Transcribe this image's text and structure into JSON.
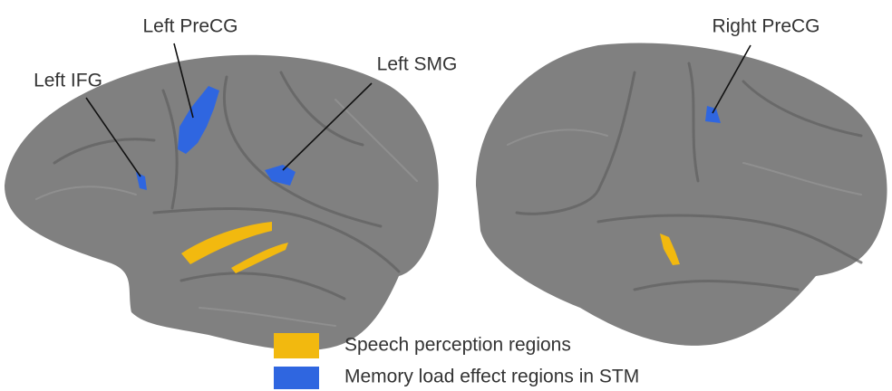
{
  "labels": {
    "left_precg": "Left PreCG",
    "left_ifg": "Left IFG",
    "left_smg": "Left SMG",
    "right_precg": "Right PreCG"
  },
  "legend": [
    {
      "label": "Speech perception regions",
      "color": "#f2b90f"
    },
    {
      "label": "Memory load effect regions in STM",
      "color": "#2f66e0"
    }
  ]
}
